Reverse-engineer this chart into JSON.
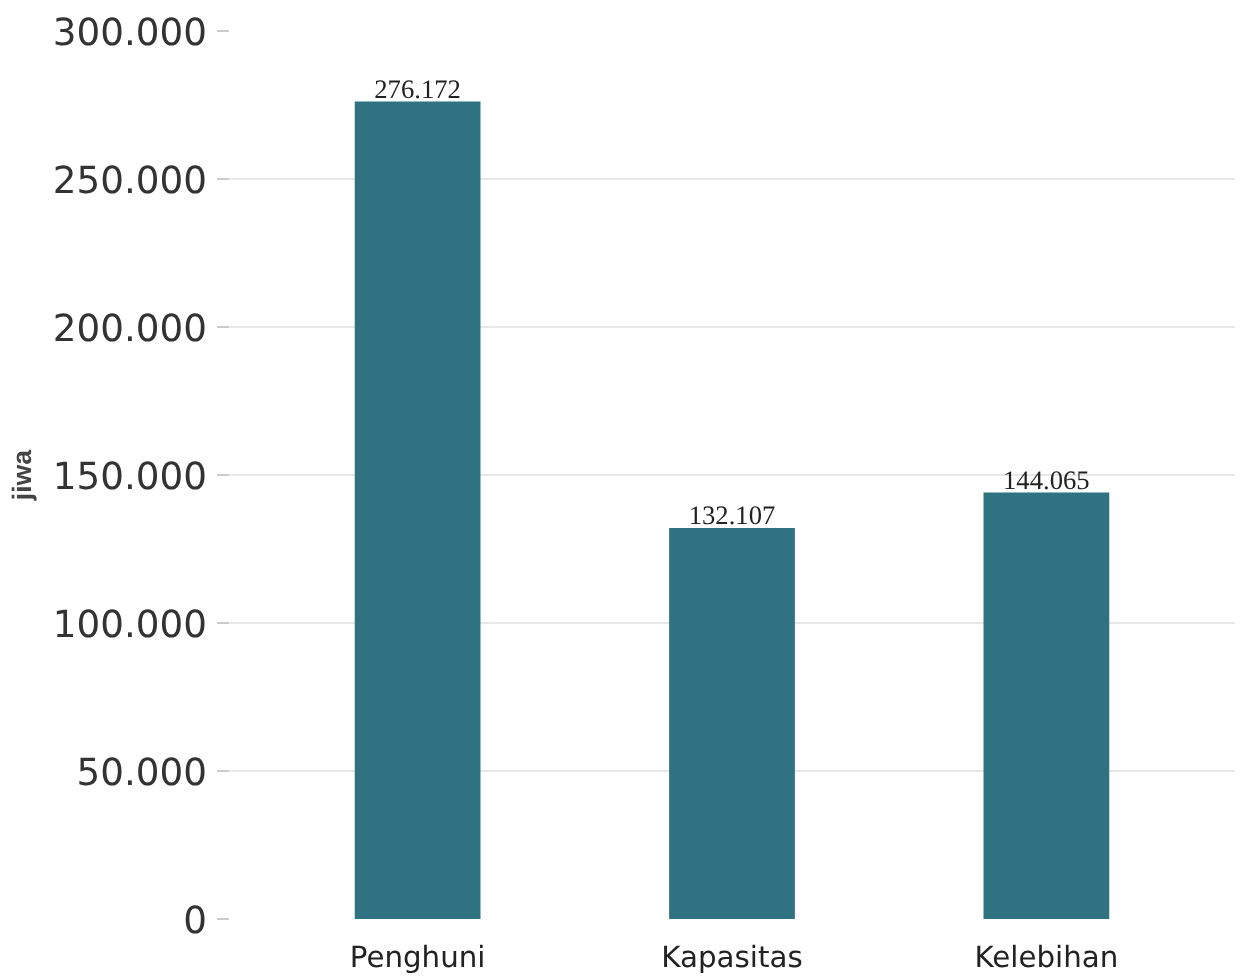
{
  "chart_data": {
    "type": "bar",
    "ylabel": "jiwa",
    "categories": [
      "Penghuni",
      "Kapasitas",
      "Kelebihan"
    ],
    "values": [
      276172,
      132107,
      144065
    ],
    "value_labels": [
      "276.172",
      "132.107",
      "144.065"
    ],
    "color": "#2f7282",
    "ylim": [
      0,
      300000
    ],
    "yticks": [
      {
        "value": 0,
        "label": "0"
      },
      {
        "value": 50000,
        "label": "50.000"
      },
      {
        "value": 100000,
        "label": "100.000"
      },
      {
        "value": 150000,
        "label": "150.000"
      },
      {
        "value": 200000,
        "label": "200.000"
      },
      {
        "value": 250000,
        "label": "250.000"
      },
      {
        "value": 300000,
        "label": "300.000"
      }
    ],
    "grid": "y"
  }
}
